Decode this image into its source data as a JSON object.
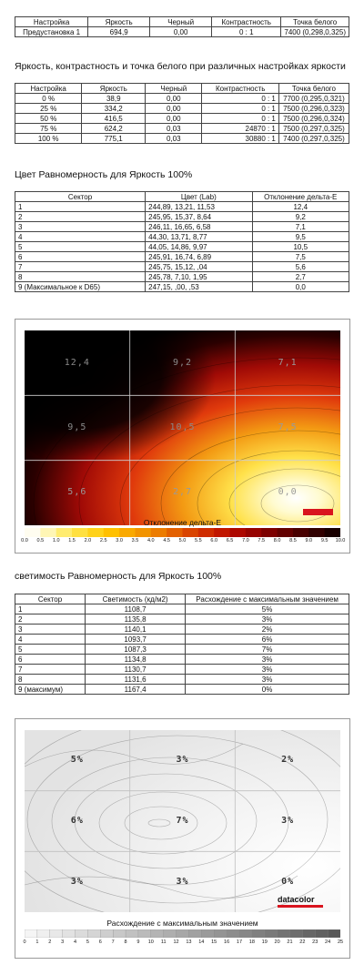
{
  "summary": {
    "headers": [
      "Настройка",
      "Яркость",
      "Черный",
      "Контрастность",
      "Точка белого"
    ],
    "rows": [
      [
        "Предустановка 1",
        "694,9",
        "0,00",
        "0 : 1",
        "7400 (0,298,0,325)"
      ]
    ]
  },
  "brightness_section": {
    "heading": "Яркость, контрастность и точка белого при различных настройках яркости",
    "headers": [
      "Настройка",
      "Яркость",
      "Черный",
      "Контрастность",
      "Точка белого"
    ],
    "rows": [
      [
        "0 %",
        "38,9",
        "0,00",
        "0 : 1",
        "7700 (0,295,0,321)"
      ],
      [
        "25 %",
        "334,2",
        "0,00",
        "0 : 1",
        "7500 (0,296,0,323)"
      ],
      [
        "50 %",
        "416,5",
        "0,00",
        "0 : 1",
        "7500 (0,296,0,324)"
      ],
      [
        "75 %",
        "624,2",
        "0,03",
        "24870 : 1",
        "7500 (0,297,0,325)"
      ],
      [
        "100 %",
        "775,1",
        "0,03",
        "30880 : 1",
        "7400 (0,297,0,325)"
      ]
    ]
  },
  "color_uniformity": {
    "heading": "Цвет Равномерность для Яркость 100%",
    "headers": [
      "Сектор",
      "Цвет (Lab)",
      "Отклонение дельта-E"
    ],
    "rows": [
      [
        "1",
        "244,89,  13,21,  11,53",
        "12,4"
      ],
      [
        "2",
        "245,95,  15,37,   8,64",
        "9,2"
      ],
      [
        "3",
        "246,11,  16,65,   6,58",
        "7,1"
      ],
      [
        "4",
        " 44,30,  13,71,   8,77",
        "9,5"
      ],
      [
        "5",
        " 44,05,  14,86,   9,97",
        "10,5"
      ],
      [
        "6",
        "245,91,  16,74,   6,89",
        "7,5"
      ],
      [
        "7",
        "245,75,  15,12,    ,04",
        "5,6"
      ],
      [
        "8",
        "245,78,   7,10,   1,95",
        "2,7"
      ],
      [
        "9 (Максимальное к D65)",
        "247,15,    ,00,    ,53",
        "0,0"
      ]
    ]
  },
  "delta_map": {
    "cells": [
      "12,4",
      "9,2",
      "7,1",
      "9,5",
      "10,5",
      "7,5",
      "5,6",
      "2,7",
      "0,0"
    ],
    "legend_title": "Отклонение дельта-E",
    "ticks": [
      "0.0",
      "0.5",
      "1.0",
      "1.5",
      "2.0",
      "2.5",
      "3.0",
      "3.5",
      "4.0",
      "4.5",
      "5.0",
      "5.5",
      "6.0",
      "6.5",
      "7.0",
      "7.5",
      "8.0",
      "8.5",
      "9.0",
      "9.5",
      "10.0"
    ]
  },
  "luminance_uniformity": {
    "heading": "светимость Равномерность для Яркость 100%",
    "headers": [
      "Сектор",
      "Светимость (кд/м2)",
      "Расхождение с максимальным значением"
    ],
    "rows": [
      [
        "1",
        "1108,7",
        "5%"
      ],
      [
        "2",
        "1135,8",
        "3%"
      ],
      [
        "3",
        "1140,1",
        "2%"
      ],
      [
        "4",
        "1093,7",
        "6%"
      ],
      [
        "5",
        "1087,3",
        "7%"
      ],
      [
        "6",
        "1134,8",
        "3%"
      ],
      [
        "7",
        "1130,7",
        "3%"
      ],
      [
        "8",
        "1131,6",
        "3%"
      ],
      [
        "9 (максимум)",
        "1167,4",
        "0%"
      ]
    ]
  },
  "lum_map": {
    "cells": [
      "5%",
      "3%",
      "2%",
      "6%",
      "7%",
      "3%",
      "3%",
      "3%",
      "0%"
    ],
    "brand": "datacolor",
    "legend_title": "Расхождение с максимальным значением",
    "ticks": [
      "0",
      "1",
      "2",
      "3",
      "4",
      "5",
      "6",
      "7",
      "8",
      "9",
      "10",
      "11",
      "12",
      "13",
      "14",
      "15",
      "16",
      "17",
      "18",
      "19",
      "20",
      "21",
      "22",
      "23",
      "24",
      "25"
    ]
  }
}
